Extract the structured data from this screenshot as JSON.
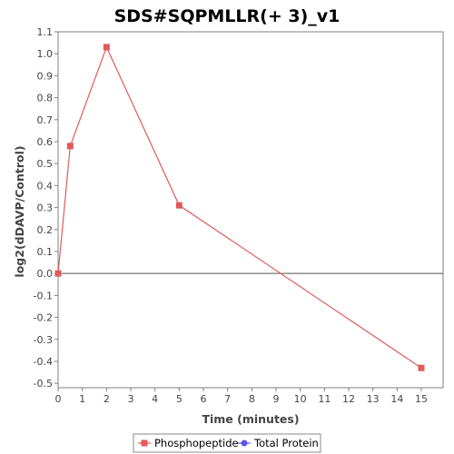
{
  "chart_data": {
    "type": "line",
    "title": "SDS#SQPMLLR(+ 3)_v1",
    "xlabel": "Time (minutes)",
    "ylabel": "log2(dDAVP/Control)",
    "xlim": [
      0,
      15.9
    ],
    "ylim": [
      -0.52,
      1.1
    ],
    "xticks": [
      0,
      1,
      2,
      3,
      4,
      5,
      6,
      7,
      8,
      9,
      10,
      11,
      12,
      13,
      14,
      15
    ],
    "yticks": [
      1.1,
      1.0,
      0.9,
      0.8,
      0.7,
      0.6,
      0.5,
      0.4,
      0.3,
      0.2,
      0.1,
      0.0,
      -0.1,
      -0.2,
      -0.3,
      -0.4,
      -0.5
    ],
    "ytick_labels": [
      "1.1",
      "1.0",
      "0.9",
      "0.8",
      "0.7",
      "0.6",
      "0.5",
      "0.4",
      "0.3",
      "0.2",
      "0.1",
      "0.0",
      "-0.1",
      "-0.2",
      "-0.3",
      "-0.4",
      "-0.5"
    ],
    "grid": false,
    "zero_line": true,
    "legend_position": "bottom",
    "series": [
      {
        "name": "Phosphopeptide",
        "color": "#e05a5a",
        "marker": "square",
        "x": [
          0,
          0.5,
          2,
          5,
          15
        ],
        "y": [
          0.0,
          0.58,
          1.03,
          0.31,
          -0.43
        ]
      },
      {
        "name": "Total Protein",
        "color": "#5a5ae0",
        "marker": "circle",
        "x": [],
        "y": []
      }
    ]
  }
}
